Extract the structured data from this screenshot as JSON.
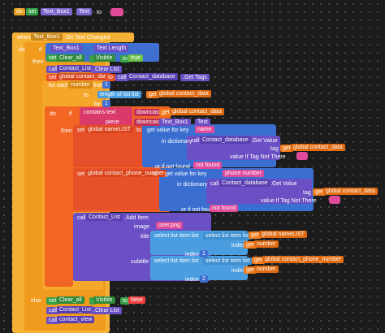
{
  "labels": [
    "do",
    "set",
    "Text_Box1",
    ".",
    "Text",
    "to",
    "when",
    "Text_Box1",
    ".On Text Changed",
    "do",
    "if",
    "Text_Box1",
    ".",
    "Text Length",
    "=",
    "then",
    "set",
    "Clear_all",
    ".",
    "Visible",
    "to",
    "true",
    "call",
    "Contact_List",
    ".Clear List",
    "set",
    "global contact_data",
    "to",
    "call",
    "Contact_database",
    ".Get Tags",
    "for each",
    "number",
    "from",
    "1",
    "to",
    "length of list list",
    "get",
    "global contact_data",
    "by",
    "1",
    "do",
    "if",
    "contains text",
    "downcase",
    "get",
    "global contact_data",
    "piece",
    "downcase",
    "Text_Box1",
    ".",
    "Text",
    "then",
    "set",
    "global nameLIST",
    "to",
    "get value for key",
    "name",
    "in dictionary",
    "call",
    "Contact_database",
    ".Get Value",
    "tag",
    "get",
    "global contact_data",
    "value If Tag Not There",
    "or if not found",
    "not found",
    "set",
    "global contact_phone_number",
    "to",
    "get value for key",
    "phone number",
    "in dictionary",
    "call",
    "Contact_database",
    ".Get Value",
    "tag",
    "get",
    "global contact_data",
    "value If Tag Not There",
    "or if not found",
    "not found",
    "call",
    "Contact_List",
    ".Add Item",
    "image",
    "user.png",
    "title",
    "select list item list",
    "select list item list",
    "get",
    "global nameLIST",
    "index",
    "get",
    "number",
    "index",
    "1",
    "subtitle",
    "select list item list",
    "select list item list",
    "get",
    "global contact_phone_number",
    "index",
    "get",
    "number",
    "index",
    "2",
    "else",
    "set",
    "Clear_all",
    ".",
    "Visible",
    "to",
    "false",
    "call",
    "Contact_List",
    ".Clear List",
    "call",
    "contact_view"
  ]
}
